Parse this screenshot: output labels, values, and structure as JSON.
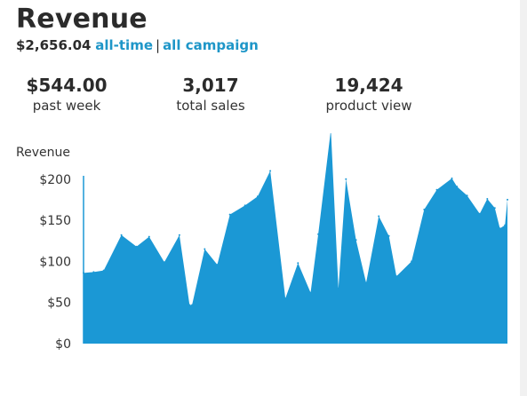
{
  "header": {
    "title": "Revenue",
    "total_amount": "$2,656.04",
    "link_all_time": "all-time",
    "separator": "|",
    "link_all_campaign": "all campaign"
  },
  "stats": [
    {
      "value": "$544.00",
      "label": "past week"
    },
    {
      "value": "3,017",
      "label": "total sales"
    },
    {
      "value": "19,424",
      "label": "product view"
    }
  ],
  "colors": {
    "accent": "#1e96c8",
    "area_fill": "#1b98d5",
    "text": "#2b2b2b"
  },
  "chart_data": {
    "type": "area",
    "title": "",
    "xlabel": "",
    "ylabel": "Revenue",
    "ylim": [
      0,
      230
    ],
    "yticks": [
      0,
      50,
      100,
      150,
      200
    ],
    "ytick_labels": [
      "$0",
      "$50",
      "$100",
      "$150",
      "$200"
    ],
    "grid": false,
    "series": [
      {
        "x": [
          0,
          4,
          8,
          15,
          21,
          26,
          32,
          38,
          42,
          43,
          48,
          53,
          58,
          64,
          69,
          74,
          80,
          85,
          90,
          93,
          98,
          101,
          104,
          108,
          112,
          117,
          121,
          124,
          130,
          135,
          140,
          146,
          148,
          152,
          157,
          160,
          163,
          165,
          167,
          168
        ],
        "y": [
          86,
          87,
          89,
          132,
          118,
          130,
          99,
          132,
          47,
          47,
          115,
          96,
          157,
          168,
          179,
          210,
          55,
          98,
          62,
          133,
          280,
          67,
          200,
          126,
          74,
          155,
          131,
          82,
          100,
          163,
          187,
          201,
          191,
          180,
          158,
          176,
          165,
          140,
          144,
          175
        ]
      }
    ]
  }
}
